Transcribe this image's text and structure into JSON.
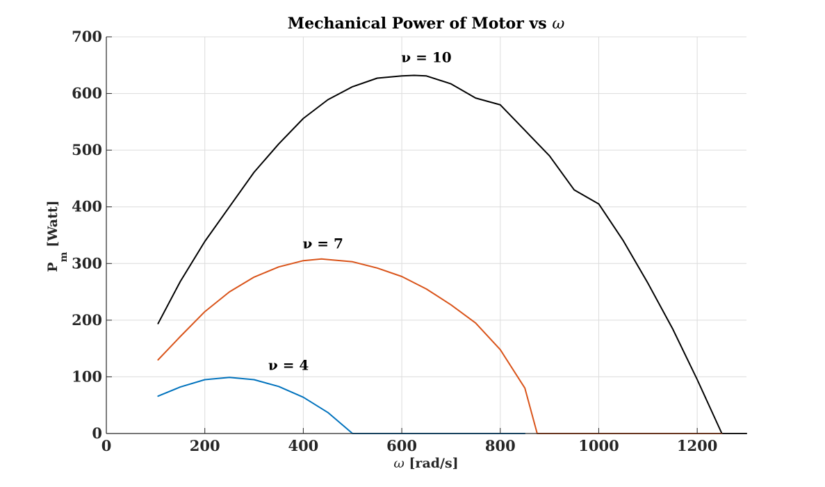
{
  "chart_data": {
    "type": "line",
    "title_text": "Mechanical Power of Motor vs ",
    "title_symbol": "ω",
    "xlabel_symbol": "ω",
    "xlabel_text": " [rad/s]",
    "ylabel_main": "P",
    "ylabel_sub": "m",
    "ylabel_unit": " [Watt]",
    "xlim": [
      0,
      1300
    ],
    "ylim": [
      0,
      700
    ],
    "x_ticks": [
      0,
      200,
      400,
      600,
      800,
      1000,
      1200
    ],
    "y_ticks": [
      0,
      100,
      200,
      300,
      400,
      500,
      600,
      700
    ],
    "grid": true,
    "series": [
      {
        "name": "ν = 10",
        "color": "#000000",
        "label_at": [
          650,
          655
        ],
        "x": [
          105,
          150,
          200,
          250,
          300,
          350,
          400,
          450,
          500,
          550,
          600,
          625,
          650,
          700,
          750,
          800,
          850,
          900,
          950,
          1000,
          1050,
          1100,
          1150,
          1200,
          1250,
          1300
        ],
        "y": [
          194,
          268,
          339,
          400,
          461,
          511,
          556,
          589,
          612,
          627,
          631,
          632,
          631,
          617,
          592,
          580,
          535,
          490,
          430,
          405,
          340,
          265,
          185,
          95,
          0,
          0
        ]
      },
      {
        "name": "ν = 7",
        "color": "#D95319",
        "label_at": [
          440,
          327
        ],
        "x": [
          105,
          150,
          200,
          250,
          300,
          350,
          400,
          437,
          450,
          500,
          550,
          600,
          650,
          700,
          750,
          800,
          850,
          875,
          900,
          950,
          1000,
          1050,
          1100,
          1150,
          1200,
          1250
        ],
        "y": [
          130,
          171,
          215,
          250,
          276,
          294,
          305,
          308,
          307,
          303,
          292,
          277,
          255,
          227,
          195,
          148,
          80,
          0,
          0,
          0,
          0,
          0,
          0,
          0,
          0,
          0
        ]
      },
      {
        "name": "ν = 4",
        "color": "#0072BD",
        "label_at": [
          370,
          112
        ],
        "x": [
          105,
          150,
          200,
          250,
          300,
          350,
          400,
          450,
          500,
          550,
          600,
          650,
          700,
          750,
          800,
          850
        ],
        "y": [
          66,
          82,
          95,
          99,
          95,
          83,
          64,
          37,
          0,
          0,
          0,
          0,
          0,
          0,
          0,
          0
        ]
      }
    ]
  }
}
